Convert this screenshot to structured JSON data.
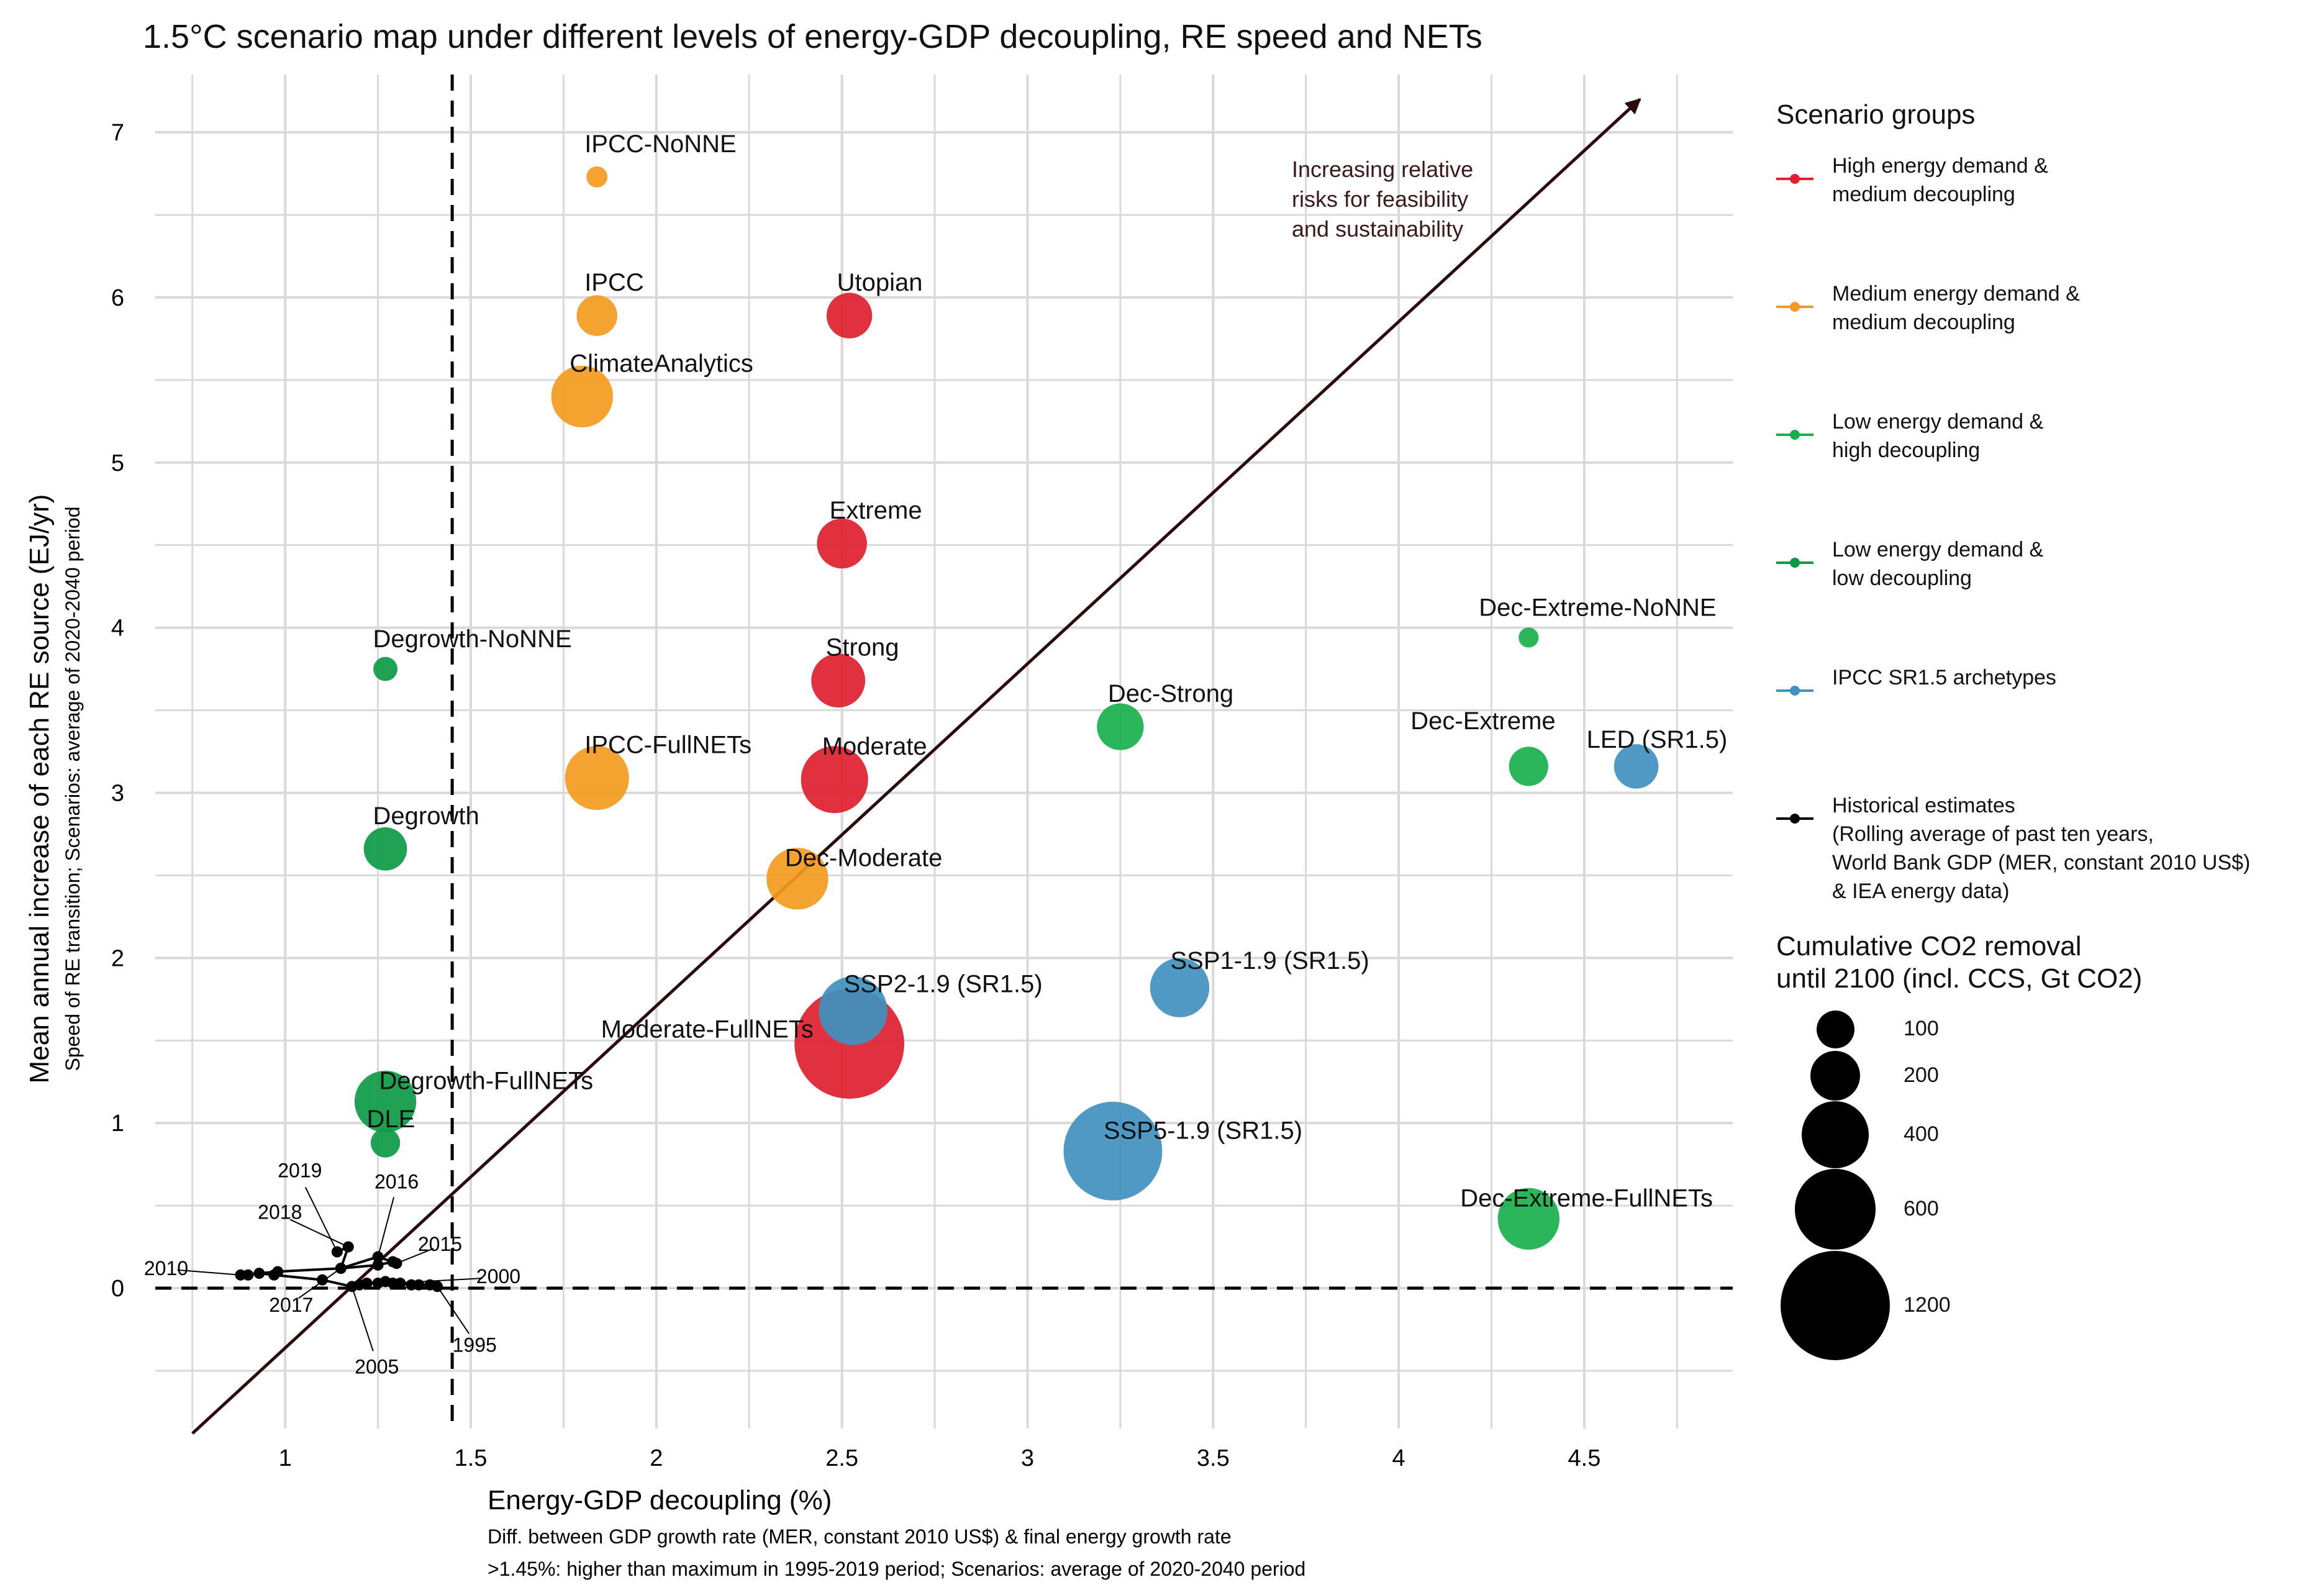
{
  "chart_data": {
    "type": "scatter",
    "title": "1.5°C scenario map under different levels of energy-GDP decoupling, RE speed and NETs",
    "xlabel": "Energy-GDP decoupling (%)",
    "xlabel_sub": [
      "Diff. between GDP growth rate (MER, constant 2010 US$) & final energy growth rate",
      ">1.45%: higher than maximum in 1995-2019 period; Scenarios: average of 2020-2040 period"
    ],
    "ylabel": "Mean annual increase of each RE source (EJ/yr)",
    "ylabel_sub": "Speed of RE transition; Scenarios: average of 2020-2040 period",
    "xlim": [
      0.65,
      4.9
    ],
    "ylim": [
      -0.85,
      7.35
    ],
    "xticks": [
      1,
      1.5,
      2,
      2.5,
      3,
      3.5,
      4,
      4.5
    ],
    "xtick_labels": [
      "1",
      "1.5",
      "2",
      "2.5",
      "3",
      "3.5",
      "4",
      "4.5"
    ],
    "yticks": [
      0,
      1,
      2,
      3,
      4,
      5,
      6,
      7
    ],
    "ytick_labels": [
      "0",
      "1",
      "2",
      "3",
      "4",
      "5",
      "6",
      "7"
    ],
    "grid": true,
    "reference_lines": {
      "x": 1.45,
      "y": 0,
      "style": "dashed"
    },
    "arrow": {
      "from": [
        0.75,
        -0.88
      ],
      "to": [
        4.65,
        7.2
      ]
    },
    "annotation": "Increasing relative\nrisks for feasibility\nand sustainability",
    "groups": [
      {
        "name": "High energy demand &\nmedium decoupling",
        "color": "#e0202e"
      },
      {
        "name": "Medium energy demand &\nmedium decoupling",
        "color": "#f39a1e"
      },
      {
        "name": "Low energy demand &\nhigh decoupling",
        "color": "#18b04b"
      },
      {
        "name": "Low energy demand &\nlow decoupling",
        "color": "#0c9a45"
      },
      {
        "name": "IPCC SR1.5 archetypes",
        "color": "#3f91c0"
      },
      {
        "name": "Historical estimates\n(Rolling average of past ten years,\nWorld Bank GDP (MER, constant 2010 US$)\n& IEA energy data)",
        "color": "#000000"
      }
    ],
    "points": [
      {
        "label": "IPCC-NoNNE",
        "x": 1.84,
        "y": 6.73,
        "size": 18,
        "group": 1
      },
      {
        "label": "IPCC",
        "x": 1.84,
        "y": 5.89,
        "size": 120,
        "group": 1
      },
      {
        "label": "ClimateAnalytics",
        "x": 1.8,
        "y": 5.4,
        "size": 330,
        "group": 1
      },
      {
        "label": "IPCC-FullNETs",
        "x": 1.84,
        "y": 3.09,
        "size": 360,
        "group": 1
      },
      {
        "label": "Dec-Moderate",
        "x": 2.38,
        "y": 2.48,
        "size": 330,
        "group": 1
      },
      {
        "label": "Utopian",
        "x": 2.52,
        "y": 5.89,
        "size": 160,
        "group": 0
      },
      {
        "label": "Extreme",
        "x": 2.5,
        "y": 4.51,
        "size": 200,
        "group": 0
      },
      {
        "label": "Strong",
        "x": 2.49,
        "y": 3.68,
        "size": 240,
        "group": 0
      },
      {
        "label": "Moderate",
        "x": 2.48,
        "y": 3.08,
        "size": 400,
        "group": 0
      },
      {
        "label": "Moderate-FullNETs",
        "x": 2.52,
        "y": 1.48,
        "size": 1200,
        "group": 0
      },
      {
        "label": "Dec-Extreme-NoNNE",
        "x": 4.35,
        "y": 3.94,
        "size": 15,
        "group": 2
      },
      {
        "label": "Dec-Strong",
        "x": 3.25,
        "y": 3.4,
        "size": 170,
        "group": 2
      },
      {
        "label": "Dec-Extreme",
        "x": 4.35,
        "y": 3.16,
        "size": 110,
        "group": 2
      },
      {
        "label": "Dec-Extreme-FullNETs",
        "x": 4.35,
        "y": 0.42,
        "size": 330,
        "group": 2
      },
      {
        "label": "Degrowth-NoNNE",
        "x": 1.27,
        "y": 3.75,
        "size": 28,
        "group": 3
      },
      {
        "label": "Degrowth",
        "x": 1.27,
        "y": 2.66,
        "size": 140,
        "group": 3
      },
      {
        "label": "Degrowth-FullNETs",
        "x": 1.27,
        "y": 1.13,
        "size": 330,
        "group": 3
      },
      {
        "label": "DLE",
        "x": 1.27,
        "y": 0.88,
        "size": 50,
        "group": 3
      },
      {
        "label": "LED (SR1.5)",
        "x": 4.64,
        "y": 3.16,
        "size": 150,
        "group": 4
      },
      {
        "label": "SSP1-1.9 (SR1.5)",
        "x": 3.41,
        "y": 1.82,
        "size": 300,
        "group": 4
      },
      {
        "label": "SSP2-1.9 (SR1.5)",
        "x": 2.53,
        "y": 1.68,
        "size": 420,
        "group": 4
      },
      {
        "label": "SSP5-1.9 (SR1.5)",
        "x": 3.23,
        "y": 0.83,
        "size": 950,
        "group": 4
      }
    ],
    "historical": {
      "points": [
        {
          "year": "1995",
          "x": 1.41,
          "y": 0.01
        },
        {
          "year": "1996",
          "x": 1.39,
          "y": 0.02
        },
        {
          "year": "1997",
          "x": 1.36,
          "y": 0.02
        },
        {
          "year": "1998",
          "x": 1.34,
          "y": 0.02
        },
        {
          "year": "1999",
          "x": 1.31,
          "y": 0.03
        },
        {
          "year": "2000",
          "x": 1.29,
          "y": 0.03
        },
        {
          "year": "2001",
          "x": 1.27,
          "y": 0.04
        },
        {
          "year": "2002",
          "x": 1.25,
          "y": 0.03
        },
        {
          "year": "2003",
          "x": 1.22,
          "y": 0.03
        },
        {
          "year": "2004",
          "x": 1.2,
          "y": 0.02
        },
        {
          "year": "2005",
          "x": 1.18,
          "y": 0.01
        },
        {
          "year": "2006",
          "x": 1.1,
          "y": 0.05
        },
        {
          "year": "2007",
          "x": 0.97,
          "y": 0.08
        },
        {
          "year": "2008",
          "x": 0.93,
          "y": 0.09
        },
        {
          "year": "2009",
          "x": 0.9,
          "y": 0.08
        },
        {
          "year": "2010",
          "x": 0.88,
          "y": 0.08
        },
        {
          "year": "2011",
          "x": 0.98,
          "y": 0.1
        },
        {
          "year": "2012",
          "x": 1.15,
          "y": 0.12
        },
        {
          "year": "2013",
          "x": 1.25,
          "y": 0.14
        },
        {
          "year": "2014",
          "x": 1.29,
          "y": 0.16
        },
        {
          "year": "2015",
          "x": 1.3,
          "y": 0.15
        },
        {
          "year": "2016",
          "x": 1.25,
          "y": 0.19
        },
        {
          "year": "2017",
          "x": 1.15,
          "y": 0.12
        },
        {
          "year": "2018",
          "x": 1.17,
          "y": 0.25
        },
        {
          "year": "2019",
          "x": 1.14,
          "y": 0.22
        }
      ],
      "labels": [
        {
          "text": "2019",
          "x": 1.14,
          "y": 0.22
        },
        {
          "text": "2018",
          "x": 1.17,
          "y": 0.25
        },
        {
          "text": "2016",
          "x": 1.25,
          "y": 0.19
        },
        {
          "text": "2015",
          "x": 1.3,
          "y": 0.15
        },
        {
          "text": "2010",
          "x": 0.88,
          "y": 0.08
        },
        {
          "text": "2017",
          "x": 1.15,
          "y": 0.12
        },
        {
          "text": "2005",
          "x": 1.18,
          "y": 0.01
        },
        {
          "text": "1995",
          "x": 1.41,
          "y": 0.01
        },
        {
          "text": "2000",
          "x": 1.29,
          "y": 0.03
        }
      ]
    },
    "legend": {
      "groups_title": "Scenario groups",
      "position": "right",
      "size_title": "Cumulative CO2 removal\nuntil 2100 (incl. CCS, Gt CO2)",
      "size_values": [
        100,
        200,
        400,
        600,
        1200
      ],
      "size_labels": [
        "100",
        "200",
        "400",
        "600",
        "1200"
      ]
    }
  }
}
